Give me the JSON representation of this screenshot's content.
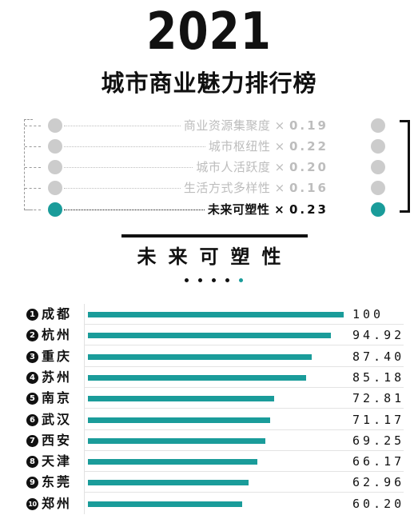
{
  "header": {
    "year": "2021",
    "title": "城市商业魅力排行榜"
  },
  "weights": [
    {
      "label": "商业资源集聚度",
      "mult": "×",
      "value": "0.19",
      "active": false
    },
    {
      "label": "城市枢纽性",
      "mult": "×",
      "value": "0.22",
      "active": false
    },
    {
      "label": "城市人活跃度",
      "mult": "×",
      "value": "0.20",
      "active": false
    },
    {
      "label": "生活方式多样性",
      "mult": "×",
      "value": "0.16",
      "active": false
    },
    {
      "label": "未来可塑性",
      "mult": "×",
      "value": "0.23",
      "active": true
    }
  ],
  "section": {
    "title": "未来可塑性",
    "page_count": 5,
    "active_page": 5
  },
  "colors": {
    "accent": "#1a9c9a",
    "inactive_dot": "#cccccc",
    "inactive_text": "#bdbdbd",
    "ink": "#111111"
  },
  "chart_data": {
    "type": "bar",
    "orientation": "horizontal",
    "title": "未来可塑性",
    "categories": [
      "成都",
      "杭州",
      "重庆",
      "苏州",
      "南京",
      "武汉",
      "西安",
      "天津",
      "东莞",
      "郑州"
    ],
    "ranks": [
      "1",
      "2",
      "3",
      "4",
      "5",
      "6",
      "7",
      "8",
      "9",
      "10"
    ],
    "values": [
      100,
      94.92,
      87.4,
      85.18,
      72.81,
      71.17,
      69.25,
      66.17,
      62.96,
      60.2
    ],
    "value_labels": [
      "100",
      "94.92",
      "87.40",
      "85.18",
      "72.81",
      "71.17",
      "69.25",
      "66.17",
      "62.96",
      "60.20"
    ],
    "xlim": [
      0,
      100
    ],
    "grid": false,
    "legend": "none"
  }
}
